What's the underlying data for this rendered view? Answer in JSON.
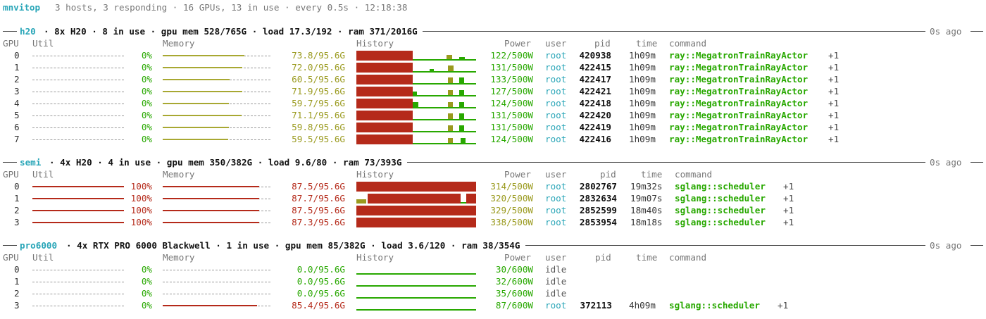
{
  "title": {
    "app": "mnvitop",
    "summary": "3 hosts, 3 responding · 16 GPUs, 13 in use · every 0.5s · 12:18:38"
  },
  "colors": {
    "accent": "#2aa6b8",
    "ok": "#28a800",
    "warn": "#9a9a1e",
    "hot": "#b52a1a",
    "dim": "#777777"
  },
  "columns": {
    "gpu": "GPU",
    "util": "Util",
    "memory": "Memory",
    "history": "History",
    "power": "Power",
    "user": "user",
    "pid": "pid",
    "time": "time",
    "command": "command"
  },
  "hosts": [
    {
      "name": "h20",
      "summary": "· 8x H20 · 8 in use · gpu mem 528/765G · load 17.3/192 · ram 371/2016G",
      "age": "0s ago",
      "gpus": [
        {
          "id": "0",
          "util": "0%",
          "util_frac": 0.0,
          "mem": "73.8/95.6G",
          "mem_frac": 0.772,
          "mem_color": "warn",
          "power": "122/500W",
          "power_color": "ok",
          "user": "root",
          "pid": "420938",
          "time": "1h09m",
          "command": "ray::MegatronTrainRayActor",
          "extra": "+1",
          "history": "h20a"
        },
        {
          "id": "1",
          "util": "0%",
          "util_frac": 0.0,
          "mem": "72.0/95.6G",
          "mem_frac": 0.753,
          "mem_color": "warn",
          "power": "131/500W",
          "power_color": "ok",
          "user": "root",
          "pid": "422415",
          "time": "1h09m",
          "command": "ray::MegatronTrainRayActor",
          "extra": "+1",
          "history": "h20b"
        },
        {
          "id": "2",
          "util": "0%",
          "util_frac": 0.0,
          "mem": "60.5/95.6G",
          "mem_frac": 0.633,
          "mem_color": "warn",
          "power": "133/500W",
          "power_color": "ok",
          "user": "root",
          "pid": "422417",
          "time": "1h09m",
          "command": "ray::MegatronTrainRayActor",
          "extra": "+1",
          "history": "h20c"
        },
        {
          "id": "3",
          "util": "0%",
          "util_frac": 0.0,
          "mem": "71.9/95.6G",
          "mem_frac": 0.752,
          "mem_color": "warn",
          "power": "127/500W",
          "power_color": "ok",
          "user": "root",
          "pid": "422421",
          "time": "1h09m",
          "command": "ray::MegatronTrainRayActor",
          "extra": "+1",
          "history": "h20d"
        },
        {
          "id": "4",
          "util": "0%",
          "util_frac": 0.0,
          "mem": "59.7/95.6G",
          "mem_frac": 0.624,
          "mem_color": "warn",
          "power": "124/500W",
          "power_color": "ok",
          "user": "root",
          "pid": "422418",
          "time": "1h09m",
          "command": "ray::MegatronTrainRayActor",
          "extra": "+1",
          "history": "h20e"
        },
        {
          "id": "5",
          "util": "0%",
          "util_frac": 0.0,
          "mem": "71.1/95.6G",
          "mem_frac": 0.744,
          "mem_color": "warn",
          "power": "131/500W",
          "power_color": "ok",
          "user": "root",
          "pid": "422420",
          "time": "1h09m",
          "command": "ray::MegatronTrainRayActor",
          "extra": "+1",
          "history": "h20c"
        },
        {
          "id": "6",
          "util": "0%",
          "util_frac": 0.0,
          "mem": "59.8/95.6G",
          "mem_frac": 0.626,
          "mem_color": "warn",
          "power": "131/500W",
          "power_color": "ok",
          "user": "root",
          "pid": "422419",
          "time": "1h09m",
          "command": "ray::MegatronTrainRayActor",
          "extra": "+1",
          "history": "h20c"
        },
        {
          "id": "7",
          "util": "0%",
          "util_frac": 0.0,
          "mem": "59.5/95.6G",
          "mem_frac": 0.622,
          "mem_color": "warn",
          "power": "124/500W",
          "power_color": "ok",
          "user": "root",
          "pid": "422416",
          "time": "1h09m",
          "command": "ray::MegatronTrainRayActor",
          "extra": "+1",
          "history": "h20f"
        }
      ]
    },
    {
      "name": "semi",
      "summary": "· 4x H20 · 4 in use · gpu mem 350/382G · load 9.6/80 · ram 73/393G",
      "age": "0s ago",
      "gpus": [
        {
          "id": "0",
          "util": "100%",
          "util_frac": 1.0,
          "mem": "87.5/95.6G",
          "mem_frac": 0.915,
          "mem_color": "hot",
          "power": "314/500W",
          "power_color": "warn",
          "user": "root",
          "pid": "2802767",
          "time": "19m32s",
          "command": "sglang::scheduler",
          "extra": "+1",
          "history": "full"
        },
        {
          "id": "1",
          "util": "100%",
          "util_frac": 1.0,
          "mem": "87.7/95.6G",
          "mem_frac": 0.917,
          "mem_color": "hot",
          "power": "320/500W",
          "power_color": "warn",
          "user": "root",
          "pid": "2832634",
          "time": "19m07s",
          "command": "sglang::scheduler",
          "extra": "+1",
          "history": "semi1"
        },
        {
          "id": "2",
          "util": "100%",
          "util_frac": 1.0,
          "mem": "87.5/95.6G",
          "mem_frac": 0.915,
          "mem_color": "hot",
          "power": "329/500W",
          "power_color": "warn",
          "user": "root",
          "pid": "2852599",
          "time": "18m40s",
          "command": "sglang::scheduler",
          "extra": "+1",
          "history": "full"
        },
        {
          "id": "3",
          "util": "100%",
          "util_frac": 1.0,
          "mem": "87.3/95.6G",
          "mem_frac": 0.913,
          "mem_color": "hot",
          "power": "338/500W",
          "power_color": "warn",
          "user": "root",
          "pid": "2853954",
          "time": "18m18s",
          "command": "sglang::scheduler",
          "extra": "+1",
          "history": "full"
        }
      ]
    },
    {
      "name": "pro6000",
      "summary": "· 4x RTX PRO 6000 Blackwell · 1 in use · gpu mem 85/382G · load 3.6/120 · ram 38/354G",
      "age": "0s ago",
      "gpus": [
        {
          "id": "0",
          "util": "0%",
          "util_frac": 0.0,
          "mem": "0.0/95.6G",
          "mem_frac": 0.0,
          "mem_color": "ok",
          "power": "30/600W",
          "power_color": "ok",
          "user": "idle",
          "pid": "",
          "time": "",
          "command": "",
          "extra": "",
          "history": "flat"
        },
        {
          "id": "1",
          "util": "0%",
          "util_frac": 0.0,
          "mem": "0.0/95.6G",
          "mem_frac": 0.0,
          "mem_color": "ok",
          "power": "32/600W",
          "power_color": "ok",
          "user": "idle",
          "pid": "",
          "time": "",
          "command": "",
          "extra": "",
          "history": "flat"
        },
        {
          "id": "2",
          "util": "0%",
          "util_frac": 0.0,
          "mem": "0.0/95.6G",
          "mem_frac": 0.0,
          "mem_color": "ok",
          "power": "35/600W",
          "power_color": "ok",
          "user": "idle",
          "pid": "",
          "time": "",
          "command": "",
          "extra": "",
          "history": "flat"
        },
        {
          "id": "3",
          "util": "0%",
          "util_frac": 0.0,
          "mem": "85.4/95.6G",
          "mem_frac": 0.893,
          "mem_color": "hot",
          "power": "87/600W",
          "power_color": "ok",
          "user": "root",
          "pid": "372113",
          "time": "4h09m",
          "command": "sglang::scheduler",
          "extra": "+1",
          "history": "flat"
        }
      ]
    }
  ]
}
